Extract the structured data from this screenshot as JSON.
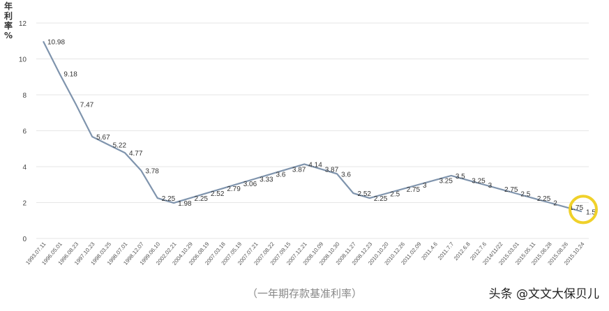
{
  "chart_data": {
    "type": "line",
    "ylabel": "年利率%",
    "ylim": [
      0,
      12
    ],
    "yticks": [
      0,
      2,
      4,
      6,
      8,
      10,
      12
    ],
    "grid": true,
    "line_color": "#7f94ad",
    "highlight_color": "#f0d12a",
    "highlight_point": "2015.10.24",
    "x_tick_labels": [
      "1993.07.11",
      "1996.05.01",
      "1996.08.23",
      "1997.10.23",
      "1998.03.25",
      "1998.07.01",
      "1998.12.07",
      "1999.06.10",
      "2002.02.21",
      "2004.10.29",
      "2006.08.19",
      "2007.03.18",
      "2007.05.19",
      "2007.07.21",
      "2007.08.22",
      "2007.09.15",
      "2007.12.21",
      "2008.10.09",
      "2008.10.30",
      "2008.11.27",
      "2008.12.23",
      "2010.10.20",
      "2010.12.26",
      "2011.02.09",
      "2011.4.6",
      "2011.7.7",
      "2012.6.8",
      "2012.7.6",
      "2014/11/22",
      "2015.03.01",
      "2015.05.11",
      "2015.06.28",
      "2015.08.26",
      "2015.10.24"
    ],
    "points": [
      {
        "x": "1993.07.11",
        "y": 10.98,
        "label": "10.98"
      },
      {
        "x": "1996.05.01",
        "y": 9.18,
        "label": "9.18"
      },
      {
        "x": "1996.08.23",
        "y": 7.47,
        "label": "7.47"
      },
      {
        "x": "1997.10.23",
        "y": 5.67,
        "label": "5.67"
      },
      {
        "x": "1998.03.25",
        "y": 5.22,
        "label": "5.22"
      },
      {
        "x": "1998.07.01",
        "y": 4.77,
        "label": "4.77"
      },
      {
        "x": "1998.12.07",
        "y": 3.78,
        "label": "3.78"
      },
      {
        "x": "1999.06.10",
        "y": 2.25,
        "label": "2.25"
      },
      {
        "x": "2002.02.21",
        "y": 1.98,
        "label": "1.98"
      },
      {
        "x": "2004.10.29",
        "y": 2.25,
        "label": "2.25"
      },
      {
        "x": "2006.08.19",
        "y": 2.52,
        "label": "2.52"
      },
      {
        "x": "2007.03.18",
        "y": 2.79,
        "label": "2.79"
      },
      {
        "x": "2007.05.19",
        "y": 3.06,
        "label": "3.06"
      },
      {
        "x": "2007.07.21",
        "y": 3.33,
        "label": "3.33"
      },
      {
        "x": "2007.08.22",
        "y": 3.6,
        "label": "3.6"
      },
      {
        "x": "2007.09.15",
        "y": 3.87,
        "label": "3.87"
      },
      {
        "x": "2007.12.21",
        "y": 4.14,
        "label": "4.14"
      },
      {
        "x": "2008.10.09",
        "y": 3.87,
        "label": "3.87"
      },
      {
        "x": "2008.10.30",
        "y": 3.6,
        "label": "3.6"
      },
      {
        "x": "2008.11.27",
        "y": 2.52,
        "label": "2.52"
      },
      {
        "x": "2008.12.23",
        "y": 2.25,
        "label": "2.25"
      },
      {
        "x": "2010.10.20",
        "y": 2.5,
        "label": "2.5"
      },
      {
        "x": "2010.12.26",
        "y": 2.75,
        "label": "2.75"
      },
      {
        "x": "2011.02.09",
        "y": 3,
        "label": "3"
      },
      {
        "x": "2011.4.6",
        "y": 3.25,
        "label": "3.25"
      },
      {
        "x": "2011.7.7",
        "y": 3.5,
        "label": "3.5"
      },
      {
        "x": "2012.6.8",
        "y": 3.25,
        "label": "3.25"
      },
      {
        "x": "2012.7.6",
        "y": 3,
        "label": "3"
      },
      {
        "x": "2014/11/22",
        "y": 2.75,
        "label": "2.75"
      },
      {
        "x": "2015.03.01",
        "y": 2.5,
        "label": "2.5"
      },
      {
        "x": "2015.05.11",
        "y": 2.25,
        "label": "2.25"
      },
      {
        "x": "2015.06.28",
        "y": 2,
        "label": "2"
      },
      {
        "x": "2015.08.26",
        "y": 1.75,
        "label": "1.75"
      },
      {
        "x": "2015.10.24",
        "y": 1.5,
        "label": "1.5"
      }
    ]
  },
  "caption": "（一年期存款基准利率）",
  "watermark": "头条 @文文大保贝儿"
}
